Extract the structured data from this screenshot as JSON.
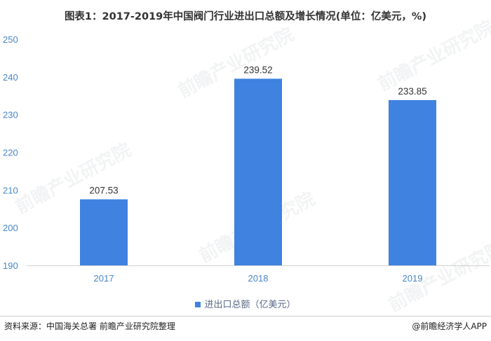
{
  "title": "图表1：2017-2019年中国阀门行业进出口总额及增长情况(单位：亿美元，%)",
  "chart_data": {
    "type": "bar",
    "categories": [
      "2017",
      "2018",
      "2019"
    ],
    "series": [
      {
        "name": "进出口总额（亿美元）",
        "values": [
          207.53,
          239.52,
          233.85
        ]
      }
    ],
    "ylim": [
      190,
      250
    ],
    "yticks": [
      190,
      200,
      210,
      220,
      230,
      240,
      250
    ],
    "data_labels": [
      "207.53",
      "239.52",
      "233.85"
    ],
    "grid": false,
    "legend_position": "bottom"
  },
  "colors": {
    "bar": "#3f82e0",
    "axis_text": "#4a86c8",
    "title": "#333333"
  },
  "watermark": "前瞻产业研究院",
  "footer": {
    "source": "资料来源：中国海关总署 前瞻产业研究院整理",
    "brand": "@前瞻经济学人APP"
  }
}
